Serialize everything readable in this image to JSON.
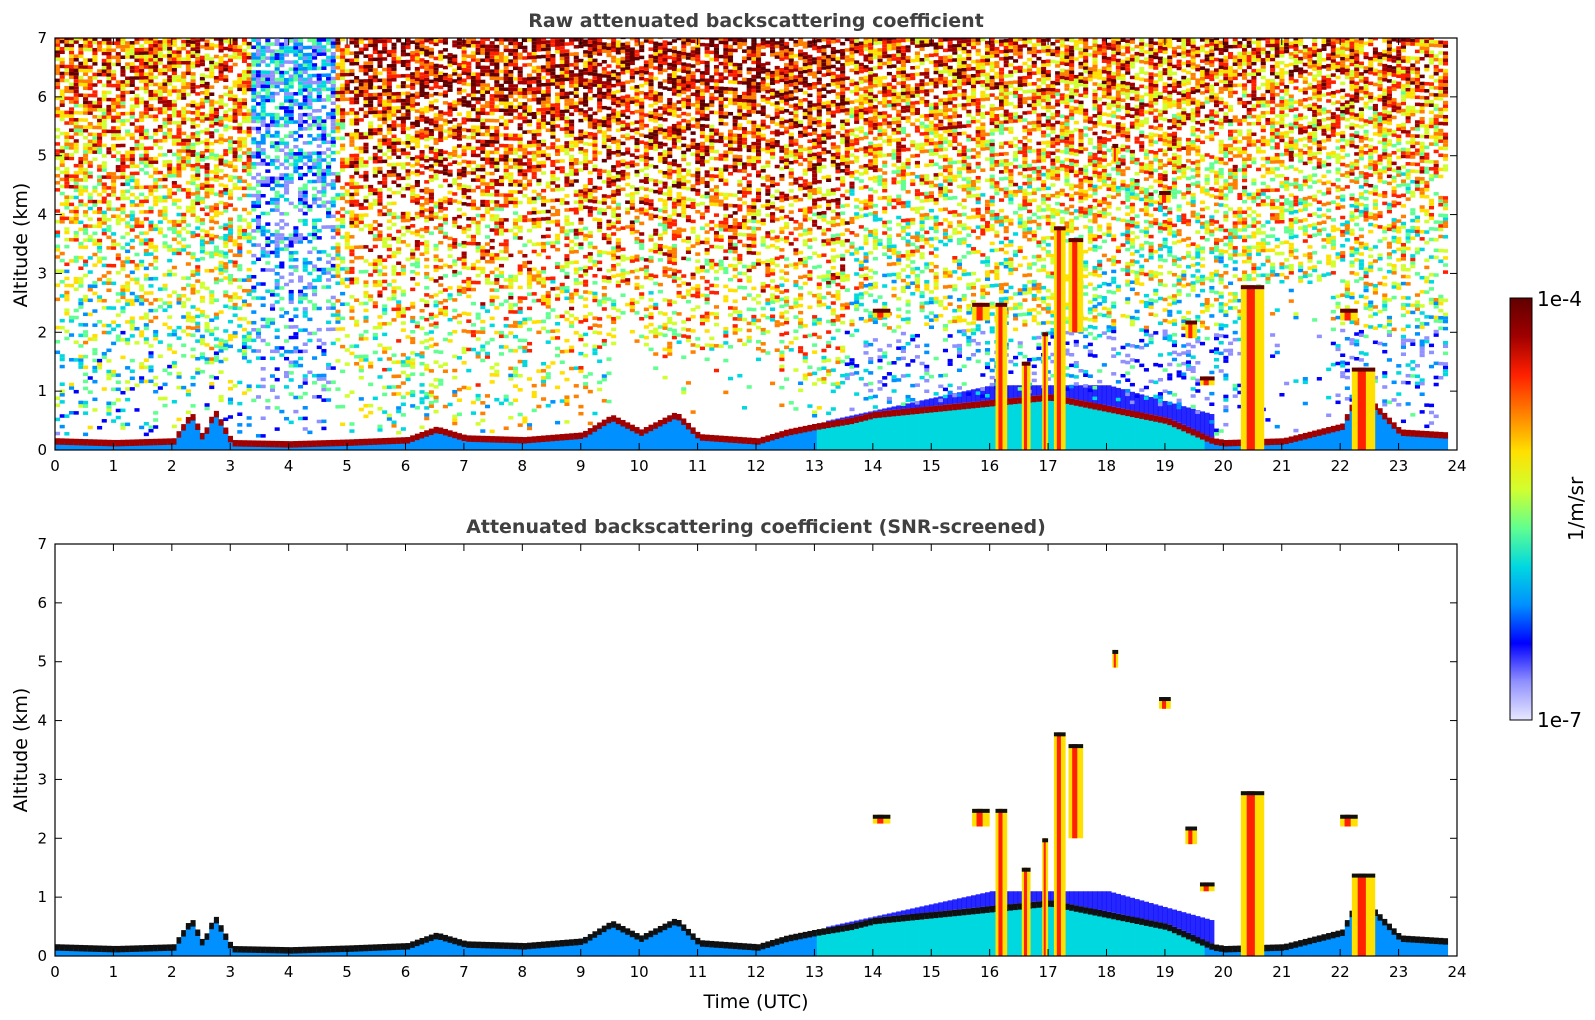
{
  "chart_data": [
    {
      "type": "heatmap",
      "title": "Raw attenuated backscattering coefficient",
      "xlabel": "",
      "ylabel": "Altitude (km)",
      "xlim": [
        0,
        24
      ],
      "ylim": [
        0,
        7
      ],
      "xticks": [
        0,
        1,
        2,
        3,
        4,
        5,
        6,
        7,
        8,
        9,
        10,
        11,
        12,
        13,
        14,
        15,
        16,
        17,
        18,
        19,
        20,
        21,
        22,
        23,
        24
      ],
      "yticks": [
        0,
        1,
        2,
        3,
        4,
        5,
        6,
        7
      ],
      "grid": false,
      "data_extent_hours": [
        0,
        23.8
      ],
      "boundary_layer_top_km": [
        [
          0,
          0.15
        ],
        [
          1,
          0.12
        ],
        [
          2,
          0.15
        ],
        [
          2.3,
          0.6
        ],
        [
          2.5,
          0.2
        ],
        [
          2.7,
          0.65
        ],
        [
          3,
          0.12
        ],
        [
          4,
          0.1
        ],
        [
          5,
          0.13
        ],
        [
          6,
          0.17
        ],
        [
          6.5,
          0.35
        ],
        [
          7,
          0.2
        ],
        [
          8,
          0.17
        ],
        [
          9,
          0.25
        ],
        [
          9.5,
          0.55
        ],
        [
          10,
          0.3
        ],
        [
          10.6,
          0.6
        ],
        [
          11,
          0.22
        ],
        [
          12,
          0.15
        ],
        [
          12.5,
          0.3
        ],
        [
          13,
          0.4
        ],
        [
          13.6,
          0.5
        ],
        [
          14,
          0.6
        ],
        [
          15,
          0.7
        ],
        [
          16,
          0.8
        ],
        [
          17,
          0.9
        ],
        [
          18,
          0.7
        ],
        [
          19,
          0.5
        ],
        [
          19.8,
          0.15
        ],
        [
          20,
          0.12
        ],
        [
          21,
          0.15
        ],
        [
          22,
          0.4
        ],
        [
          22.3,
          1.0
        ],
        [
          23,
          0.3
        ],
        [
          23.8,
          0.25
        ]
      ],
      "cloud_layers": [
        {
          "x0": 14.0,
          "x1": 14.3,
          "y0": 2.25,
          "y1": 2.4
        },
        {
          "x0": 15.7,
          "x1": 16.0,
          "y0": 2.2,
          "y1": 2.5
        },
        {
          "x0": 16.1,
          "x1": 16.3,
          "y0": 0.0,
          "y1": 2.5
        },
        {
          "x0": 16.55,
          "x1": 16.7,
          "y0": 0.0,
          "y1": 1.5
        },
        {
          "x0": 16.9,
          "x1": 17.0,
          "y0": 0.0,
          "y1": 2.0
        },
        {
          "x0": 17.1,
          "x1": 17.3,
          "y0": 0.0,
          "y1": 3.8
        },
        {
          "x0": 17.35,
          "x1": 17.6,
          "y0": 2.0,
          "y1": 3.6
        },
        {
          "x0": 18.1,
          "x1": 18.2,
          "y0": 4.9,
          "y1": 5.2
        },
        {
          "x0": 18.9,
          "x1": 19.1,
          "y0": 4.2,
          "y1": 4.4
        },
        {
          "x0": 19.35,
          "x1": 19.55,
          "y0": 1.9,
          "y1": 2.2
        },
        {
          "x0": 19.6,
          "x1": 19.85,
          "y0": 1.1,
          "y1": 1.25
        },
        {
          "x0": 20.3,
          "x1": 20.7,
          "y0": 0.0,
          "y1": 2.8
        },
        {
          "x0": 22.0,
          "x1": 22.3,
          "y0": 2.2,
          "y1": 2.4
        },
        {
          "x0": 22.2,
          "x1": 22.6,
          "y0": 0.0,
          "y1": 1.4
        }
      ]
    },
    {
      "type": "heatmap",
      "title": "Attenuated backscattering coefficient (SNR-screened)",
      "xlabel": "Time (UTC)",
      "ylabel": "Altitude (km)",
      "xlim": [
        0,
        24
      ],
      "ylim": [
        0,
        7
      ],
      "xticks": [
        0,
        1,
        2,
        3,
        4,
        5,
        6,
        7,
        8,
        9,
        10,
        11,
        12,
        13,
        14,
        15,
        16,
        17,
        18,
        19,
        20,
        21,
        22,
        23,
        24
      ],
      "yticks": [
        0,
        1,
        2,
        3,
        4,
        5,
        6,
        7
      ],
      "grid": false,
      "data_extent_hours": [
        0,
        23.8
      ]
    }
  ],
  "colorbar": {
    "label": "1/m/sr",
    "max_label": "1e-4",
    "min_label": "1e-7",
    "colors": [
      "#e8e8ff",
      "#9090ff",
      "#0000ff",
      "#0090ff",
      "#00d8e0",
      "#60ff90",
      "#d0ff30",
      "#ffe000",
      "#ff8000",
      "#ff2000",
      "#a00000",
      "#600000"
    ]
  }
}
